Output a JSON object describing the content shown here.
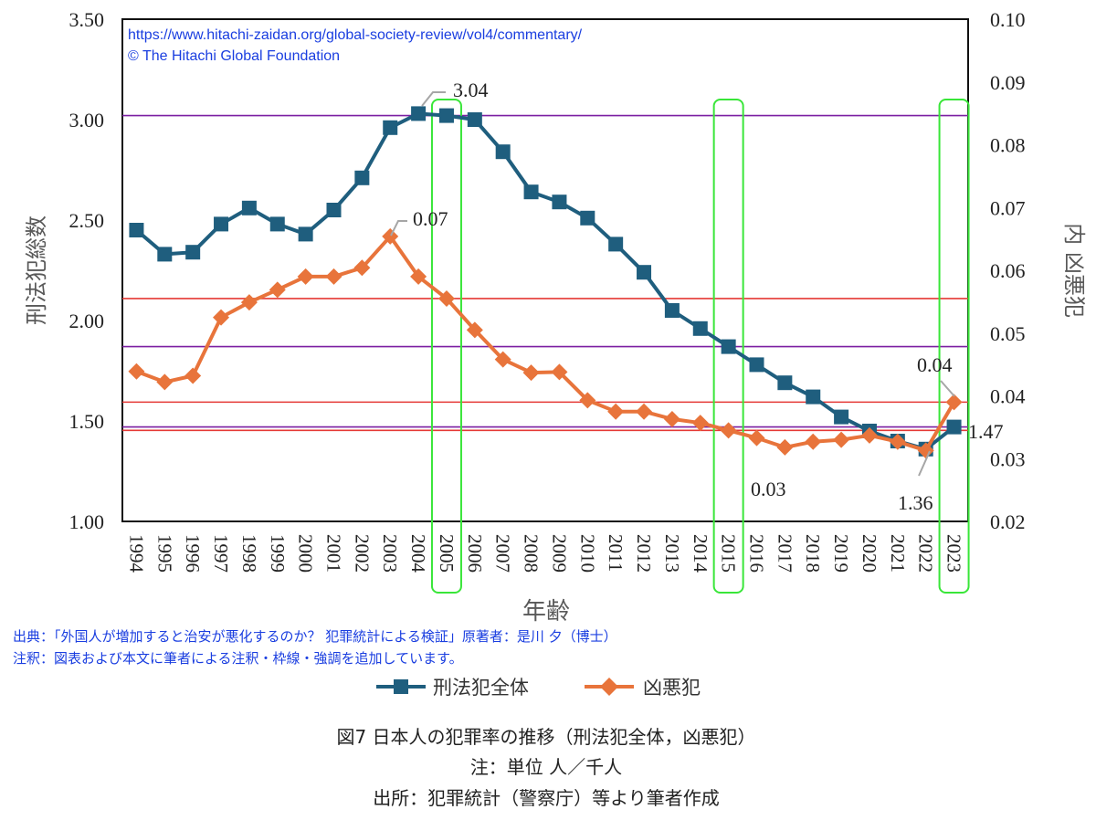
{
  "chart_data": {
    "type": "line",
    "categories": [
      "1994",
      "1995",
      "1996",
      "1997",
      "1998",
      "1999",
      "2000",
      "2001",
      "2002",
      "2003",
      "2004",
      "2005",
      "2006",
      "2007",
      "2008",
      "2009",
      "2010",
      "2011",
      "2012",
      "2013",
      "2014",
      "2015",
      "2016",
      "2017",
      "2018",
      "2019",
      "2020",
      "2021",
      "2022",
      "2023"
    ],
    "series": [
      {
        "name": "刑法犯全体",
        "axis": "left",
        "color": "#1f5e7e",
        "marker": "square",
        "values": [
          2.45,
          2.33,
          2.34,
          2.48,
          2.56,
          2.48,
          2.43,
          2.55,
          2.71,
          2.96,
          3.03,
          3.02,
          3.0,
          2.84,
          2.64,
          2.59,
          2.51,
          2.38,
          2.24,
          2.05,
          1.96,
          1.87,
          1.78,
          1.69,
          1.62,
          1.52,
          1.45,
          1.4,
          1.36,
          1.47
        ]
      },
      {
        "name": "凶悪犯",
        "axis": "right",
        "color": "#e8743b",
        "marker": "diamond",
        "values": [
          0.0439,
          0.0422,
          0.0432,
          0.0525,
          0.0549,
          0.0569,
          0.059,
          0.059,
          0.0604,
          0.0654,
          0.059,
          0.0555,
          0.0505,
          0.0458,
          0.0437,
          0.0438,
          0.0393,
          0.0375,
          0.0375,
          0.0363,
          0.0357,
          0.0345,
          0.0333,
          0.0318,
          0.0327,
          0.033,
          0.0337,
          0.0327,
          0.0313,
          0.039
        ]
      }
    ],
    "y_left": {
      "label": "刑法犯総数",
      "min": 1.0,
      "max": 3.5,
      "ticks": [
        "1.00",
        "1.50",
        "2.00",
        "2.50",
        "3.00",
        "3.50"
      ]
    },
    "y_right": {
      "label": "内 凶悪犯",
      "min": 0.02,
      "max": 0.1,
      "ticks": [
        "0.02",
        "0.03",
        "0.04",
        "0.05",
        "0.06",
        "0.07",
        "0.08",
        "0.09",
        "0.10"
      ]
    },
    "xlabel": "年齢",
    "annotations": [
      {
        "text": "3.04"
      },
      {
        "text": "0.07"
      },
      {
        "text": "0.04"
      },
      {
        "text": "1.47"
      },
      {
        "text": "0.03"
      },
      {
        "text": "1.36"
      }
    ],
    "ref_lines": [
      {
        "axis": "left",
        "value": 3.02,
        "color": "#7b1fa2"
      },
      {
        "axis": "left",
        "value": 1.87,
        "color": "#7b1fa2"
      },
      {
        "axis": "left",
        "value": 1.47,
        "color": "#7b1fa2"
      },
      {
        "axis": "right",
        "value": 0.0555,
        "color": "#e53935"
      },
      {
        "axis": "right",
        "value": 0.039,
        "color": "#e53935"
      },
      {
        "axis": "right",
        "value": 0.0345,
        "color": "#e53935"
      }
    ],
    "highlight_years": [
      "2005",
      "2015",
      "2023"
    ],
    "highlight_color": "#39e639",
    "grid": false,
    "legend": "bottom"
  },
  "source_url": "https://www.hitachi-zaidan.org/global-society-review/vol4/commentary/",
  "copyright": "© The Hitachi Global Foundation",
  "source_note": "出典：「外国人が増加すると治安が悪化するのか？ 犯罪統計による検証」原著者：是川 夕（博士）",
  "annotation_note": "注釈：図表および本文に筆者による注釈・枠線・強調を追加しています。",
  "legend": [
    {
      "label": "刑法犯全体"
    },
    {
      "label": "凶悪犯"
    }
  ],
  "caption": {
    "line1": "図7 日本人の犯罪率の推移（刑法犯全体，凶悪犯）",
    "line2": "注：単位 人／千人",
    "line3": "出所：犯罪統計（警察庁）等より筆者作成"
  }
}
